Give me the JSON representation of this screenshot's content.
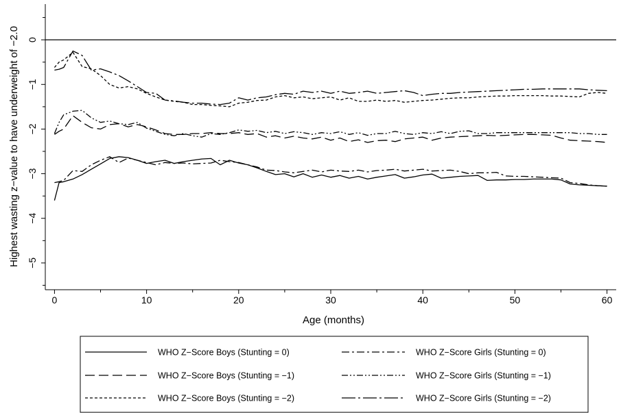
{
  "chart_data": {
    "type": "line",
    "title": "",
    "xlabel": "Age (months)",
    "ylabel": "Highest wasting z−value to have underweight of −2.0",
    "xlim": [
      -1,
      61
    ],
    "ylim": [
      -5.6,
      0.8
    ],
    "xticks": [
      0,
      10,
      20,
      30,
      40,
      50,
      60
    ],
    "yticks": [
      0,
      -1,
      -2,
      -3,
      -4,
      -5
    ],
    "xtick_labels": [
      "0",
      "10",
      "20",
      "30",
      "40",
      "50",
      "60"
    ],
    "ytick_labels": [
      "0",
      "−1",
      "−2",
      "−3",
      "−4",
      "−5"
    ],
    "reference_line_y": 0,
    "grid": false,
    "legend_position": "bottom",
    "series": [
      {
        "name": "WHO Z−Score Boys (Stunting = 0)",
        "style": "solid",
        "x": [
          0,
          0.5,
          1,
          2,
          3,
          4,
          5,
          6,
          7,
          8,
          9,
          10,
          11,
          12,
          13,
          14,
          15,
          16,
          17,
          18,
          19,
          20,
          21,
          22,
          23,
          24,
          25,
          26,
          27,
          28,
          29,
          30,
          31,
          32,
          33,
          34,
          35,
          36,
          37,
          38,
          39,
          40,
          41,
          42,
          43,
          44,
          45,
          46,
          47,
          48,
          49,
          50,
          51,
          52,
          53,
          54,
          55,
          56,
          57,
          58,
          59,
          60
        ],
        "y": [
          -3.6,
          -3.2,
          -3.18,
          -3.12,
          -3.02,
          -2.9,
          -2.78,
          -2.66,
          -2.62,
          -2.64,
          -2.7,
          -2.77,
          -2.73,
          -2.7,
          -2.77,
          -2.73,
          -2.7,
          -2.67,
          -2.66,
          -2.8,
          -2.7,
          -2.76,
          -2.8,
          -2.87,
          -2.95,
          -3.02,
          -3.0,
          -3.07,
          -3.0,
          -3.08,
          -3.03,
          -3.08,
          -3.04,
          -3.1,
          -3.06,
          -3.12,
          -3.08,
          -3.05,
          -3.02,
          -3.1,
          -3.07,
          -3.03,
          -3.01,
          -3.1,
          -3.08,
          -3.06,
          -3.05,
          -3.04,
          -3.15,
          -3.14,
          -3.14,
          -3.13,
          -3.13,
          -3.12,
          -3.12,
          -3.12,
          -3.14,
          -3.23,
          -3.25,
          -3.26,
          -3.27,
          -3.28
        ]
      },
      {
        "name": "WHO Z−Score Boys (Stunting = −1)",
        "style": "long-dash",
        "x": [
          0,
          0.5,
          1,
          2,
          3,
          4,
          5,
          6,
          7,
          8,
          9,
          10,
          11,
          12,
          13,
          14,
          15,
          16,
          17,
          18,
          19,
          20,
          21,
          22,
          23,
          24,
          25,
          26,
          27,
          28,
          29,
          30,
          31,
          32,
          33,
          34,
          35,
          36,
          37,
          38,
          39,
          40,
          41,
          42,
          43,
          44,
          45,
          46,
          47,
          48,
          49,
          50,
          51,
          52,
          53,
          54,
          55,
          56,
          57,
          58,
          59,
          60
        ],
        "y": [
          -2.12,
          -2.05,
          -2.0,
          -1.7,
          -1.85,
          -1.97,
          -2.0,
          -1.9,
          -1.88,
          -1.95,
          -1.9,
          -1.95,
          -2.02,
          -2.1,
          -2.12,
          -2.12,
          -2.1,
          -2.1,
          -2.08,
          -2.1,
          -2.1,
          -2.08,
          -2.12,
          -2.1,
          -2.18,
          -2.15,
          -2.2,
          -2.16,
          -2.2,
          -2.22,
          -2.18,
          -2.25,
          -2.2,
          -2.28,
          -2.24,
          -2.3,
          -2.26,
          -2.25,
          -2.28,
          -2.22,
          -2.2,
          -2.18,
          -2.25,
          -2.2,
          -2.18,
          -2.17,
          -2.16,
          -2.15,
          -2.14,
          -2.15,
          -2.14,
          -2.13,
          -2.12,
          -2.12,
          -2.13,
          -2.14,
          -2.2,
          -2.25,
          -2.26,
          -2.27,
          -2.28,
          -2.3
        ]
      },
      {
        "name": "WHO Z−Score Boys (Stunting = −2)",
        "style": "short-dash",
        "x": [
          0,
          0.5,
          1,
          2,
          3,
          4,
          5,
          6,
          7,
          8,
          9,
          10,
          11,
          12,
          13,
          14,
          15,
          16,
          17,
          18,
          19,
          20,
          21,
          22,
          23,
          24,
          25,
          26,
          27,
          28,
          29,
          30,
          31,
          32,
          33,
          34,
          35,
          36,
          37,
          38,
          39,
          40,
          41,
          42,
          43,
          44,
          45,
          46,
          47,
          48,
          49,
          50,
          51,
          52,
          53,
          54,
          55,
          56,
          57,
          58,
          59,
          60
        ],
        "y": [
          -0.62,
          -0.5,
          -0.45,
          -0.28,
          -0.6,
          -0.65,
          -0.8,
          -1.0,
          -1.08,
          -1.05,
          -1.1,
          -1.2,
          -1.28,
          -1.35,
          -1.38,
          -1.4,
          -1.45,
          -1.45,
          -1.47,
          -1.48,
          -1.5,
          -1.42,
          -1.4,
          -1.36,
          -1.35,
          -1.28,
          -1.25,
          -1.3,
          -1.28,
          -1.32,
          -1.3,
          -1.28,
          -1.35,
          -1.3,
          -1.38,
          -1.38,
          -1.35,
          -1.38,
          -1.36,
          -1.4,
          -1.38,
          -1.36,
          -1.35,
          -1.33,
          -1.31,
          -1.3,
          -1.3,
          -1.28,
          -1.27,
          -1.26,
          -1.26,
          -1.25,
          -1.25,
          -1.25,
          -1.25,
          -1.26,
          -1.26,
          -1.27,
          -1.28,
          -1.2,
          -1.18,
          -1.2
        ]
      },
      {
        "name": "WHO Z−Score Girls (Stunting = 0)",
        "style": "dash-dot",
        "x": [
          0,
          0.5,
          1,
          2,
          3,
          4,
          5,
          6,
          7,
          8,
          9,
          10,
          11,
          12,
          13,
          14,
          15,
          16,
          17,
          18,
          19,
          20,
          21,
          22,
          23,
          24,
          25,
          26,
          27,
          28,
          29,
          30,
          31,
          32,
          33,
          34,
          35,
          36,
          37,
          38,
          39,
          40,
          41,
          42,
          43,
          44,
          45,
          46,
          47,
          48,
          49,
          50,
          51,
          52,
          53,
          54,
          55,
          56,
          57,
          58,
          59,
          60
        ],
        "y": [
          -3.2,
          -3.18,
          -3.15,
          -2.93,
          -2.95,
          -2.8,
          -2.7,
          -2.62,
          -2.75,
          -2.65,
          -2.7,
          -2.75,
          -2.8,
          -2.75,
          -2.77,
          -2.76,
          -2.78,
          -2.77,
          -2.76,
          -2.7,
          -2.73,
          -2.75,
          -2.8,
          -2.85,
          -2.92,
          -2.93,
          -2.96,
          -2.98,
          -2.95,
          -2.92,
          -2.96,
          -2.92,
          -2.94,
          -2.95,
          -2.92,
          -2.96,
          -2.93,
          -2.92,
          -2.9,
          -2.94,
          -2.92,
          -2.9,
          -2.94,
          -2.93,
          -2.92,
          -2.95,
          -3.0,
          -2.98,
          -2.98,
          -2.97,
          -3.05,
          -3.06,
          -3.06,
          -3.07,
          -3.08,
          -3.09,
          -3.1,
          -3.2,
          -3.22,
          -3.25,
          -3.27,
          -3.28
        ]
      },
      {
        "name": "WHO Z−Score Girls (Stunting = −1)",
        "style": "dash-dot-dot",
        "x": [
          0,
          0.5,
          1,
          2,
          3,
          4,
          5,
          6,
          7,
          8,
          9,
          10,
          11,
          12,
          13,
          14,
          15,
          16,
          17,
          18,
          19,
          20,
          21,
          22,
          23,
          24,
          25,
          26,
          27,
          28,
          29,
          30,
          31,
          32,
          33,
          34,
          35,
          36,
          37,
          38,
          39,
          40,
          41,
          42,
          43,
          44,
          45,
          46,
          47,
          48,
          49,
          50,
          51,
          52,
          53,
          54,
          55,
          56,
          57,
          58,
          59,
          60
        ],
        "y": [
          -2.1,
          -1.85,
          -1.68,
          -1.6,
          -1.58,
          -1.75,
          -1.85,
          -1.82,
          -1.88,
          -1.9,
          -1.85,
          -1.98,
          -2.05,
          -2.12,
          -2.15,
          -2.1,
          -2.15,
          -2.18,
          -2.1,
          -2.12,
          -2.08,
          -2.02,
          -2.05,
          -2.03,
          -2.08,
          -2.05,
          -2.1,
          -2.06,
          -2.08,
          -2.12,
          -2.08,
          -2.1,
          -2.06,
          -2.12,
          -2.08,
          -2.14,
          -2.1,
          -2.1,
          -2.05,
          -2.1,
          -2.12,
          -2.08,
          -2.1,
          -2.06,
          -2.1,
          -2.05,
          -2.04,
          -2.1,
          -2.1,
          -2.08,
          -2.08,
          -2.08,
          -2.08,
          -2.08,
          -2.08,
          -2.08,
          -2.08,
          -2.08,
          -2.1,
          -2.1,
          -2.12,
          -2.12
        ]
      },
      {
        "name": "WHO Z−Score Girls (Stunting = −2)",
        "style": "long-dash-dot",
        "x": [
          0,
          0.5,
          1,
          2,
          3,
          4,
          5,
          6,
          7,
          8,
          9,
          10,
          11,
          12,
          13,
          14,
          15,
          16,
          17,
          18,
          19,
          20,
          21,
          22,
          23,
          24,
          25,
          26,
          27,
          28,
          29,
          30,
          31,
          32,
          33,
          34,
          35,
          36,
          37,
          38,
          39,
          40,
          41,
          42,
          43,
          44,
          45,
          46,
          47,
          48,
          49,
          50,
          51,
          52,
          53,
          54,
          55,
          56,
          57,
          58,
          59,
          60
        ],
        "y": [
          -0.68,
          -0.66,
          -0.62,
          -0.25,
          -0.35,
          -0.68,
          -0.65,
          -0.72,
          -0.8,
          -0.92,
          -1.05,
          -1.18,
          -1.2,
          -1.35,
          -1.37,
          -1.4,
          -1.42,
          -1.42,
          -1.44,
          -1.45,
          -1.42,
          -1.3,
          -1.35,
          -1.3,
          -1.28,
          -1.23,
          -1.2,
          -1.22,
          -1.15,
          -1.18,
          -1.15,
          -1.2,
          -1.15,
          -1.2,
          -1.18,
          -1.15,
          -1.2,
          -1.18,
          -1.16,
          -1.14,
          -1.18,
          -1.25,
          -1.22,
          -1.2,
          -1.2,
          -1.18,
          -1.17,
          -1.16,
          -1.15,
          -1.14,
          -1.13,
          -1.12,
          -1.11,
          -1.11,
          -1.1,
          -1.1,
          -1.1,
          -1.1,
          -1.1,
          -1.12,
          -1.13,
          -1.14
        ]
      }
    ]
  }
}
